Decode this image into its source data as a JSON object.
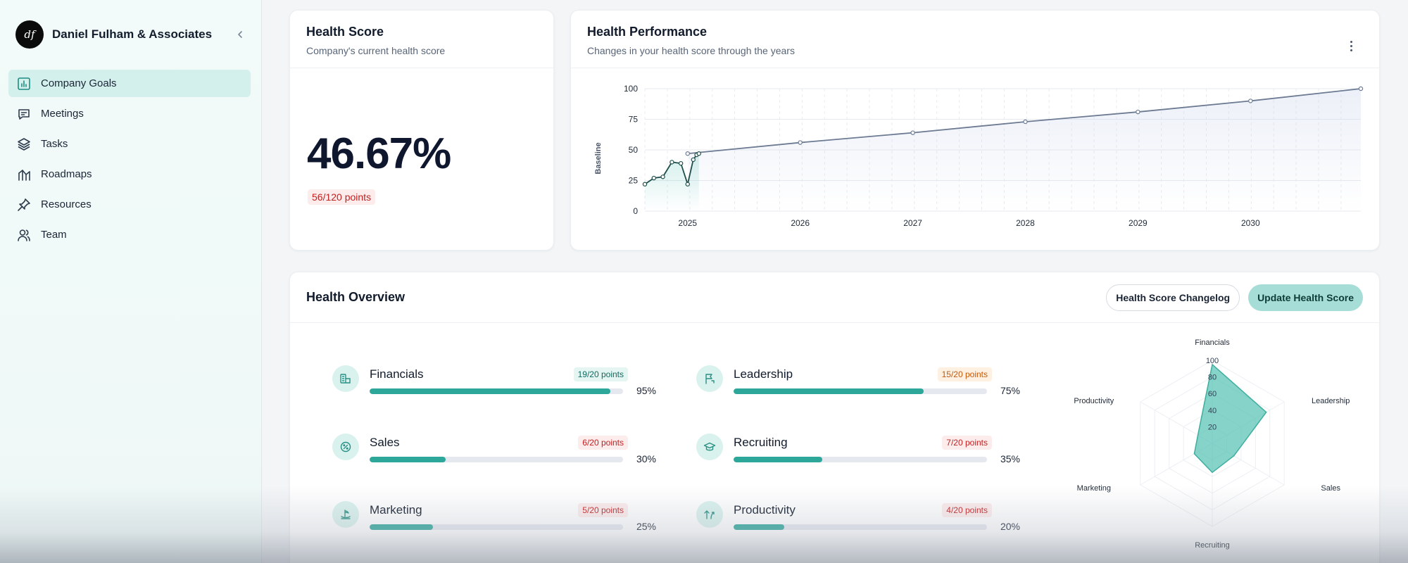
{
  "sidebar": {
    "company_name": "Daniel Fulham & Associates",
    "logo_text": "df",
    "items": [
      {
        "label": "Company Goals",
        "icon": "bar-chart-icon",
        "active": true
      },
      {
        "label": "Meetings",
        "icon": "message-square-icon",
        "active": false
      },
      {
        "label": "Tasks",
        "icon": "layers-icon",
        "active": false
      },
      {
        "label": "Roadmaps",
        "icon": "roadmap-icon",
        "active": false
      },
      {
        "label": "Resources",
        "icon": "pin-icon",
        "active": false
      },
      {
        "label": "Team",
        "icon": "users-icon",
        "active": false
      }
    ]
  },
  "score_card": {
    "title": "Health Score",
    "subtitle": "Company's current health score",
    "value": "46.67%",
    "points": "56/120 points"
  },
  "performance_card": {
    "title": "Health Performance",
    "subtitle": "Changes in your health score through the years"
  },
  "overview": {
    "title": "Health Overview",
    "changelog_label": "Health Score Changelog",
    "update_label": "Update Health Score",
    "metrics": [
      {
        "name": "Financials",
        "points": "19/20 points",
        "percent_label": "95%",
        "percent": 95,
        "level": "good",
        "icon": "coins-icon"
      },
      {
        "name": "Leadership",
        "points": "15/20 points",
        "percent_label": "75%",
        "percent": 75,
        "level": "mid",
        "icon": "flag-icon"
      },
      {
        "name": "Sales",
        "points": "6/20 points",
        "percent_label": "30%",
        "percent": 30,
        "level": "low",
        "icon": "badge-percent-icon"
      },
      {
        "name": "Recruiting",
        "points": "7/20 points",
        "percent_label": "35%",
        "percent": 35,
        "level": "low",
        "icon": "graduation-cap-icon"
      },
      {
        "name": "Marketing",
        "points": "5/20 points",
        "percent_label": "25%",
        "percent": 25,
        "level": "low",
        "icon": "megaphone-icon"
      },
      {
        "name": "Productivity",
        "points": "4/20 points",
        "percent_label": "20%",
        "percent": 20,
        "level": "low",
        "icon": "trending-up-icon"
      }
    ]
  },
  "colors": {
    "accent": "#2ea79b",
    "line": "#6c7a92",
    "radar_fill": "#5cc4b7"
  },
  "chart_data": [
    {
      "type": "line",
      "ylabel": "Baseline",
      "xlabel": "",
      "ylim": [
        0,
        100
      ],
      "y_ticks": [
        0,
        25,
        50,
        75,
        100
      ],
      "x_ticks": [
        "2025",
        "2026",
        "2027",
        "2028",
        "2029",
        "2030"
      ],
      "xlim": [
        2024.62,
        2030.98
      ],
      "grid": true,
      "series": [
        {
          "points": [
            {
              "x": 2024.62,
              "y": 22
            },
            {
              "x": 2024.7,
              "y": 27
            },
            {
              "x": 2024.78,
              "y": 28
            },
            {
              "x": 2024.86,
              "y": 40
            },
            {
              "x": 2024.94,
              "y": 39
            },
            {
              "x": 2025.0,
              "y": 22
            },
            {
              "x": 2025.05,
              "y": 42
            },
            {
              "x": 2025.08,
              "y": 46
            },
            {
              "x": 2025.1,
              "y": 47
            },
            {
              "x": 2025.0,
              "y": 47
            },
            {
              "x": 2026.0,
              "y": 56
            },
            {
              "x": 2027.0,
              "y": 64
            },
            {
              "x": 2028.0,
              "y": 73
            },
            {
              "x": 2029.0,
              "y": 81
            },
            {
              "x": 2030.0,
              "y": 90
            },
            {
              "x": 2030.98,
              "y": 100
            }
          ]
        }
      ]
    },
    {
      "type": "radar",
      "categories": [
        "Financials",
        "Leadership",
        "Sales",
        "Recruiting",
        "Marketing",
        "Productivity"
      ],
      "values": [
        95,
        75,
        30,
        35,
        25,
        20
      ],
      "ticks": [
        20,
        40,
        60,
        80,
        100
      ],
      "ylim": [
        0,
        100
      ]
    }
  ]
}
